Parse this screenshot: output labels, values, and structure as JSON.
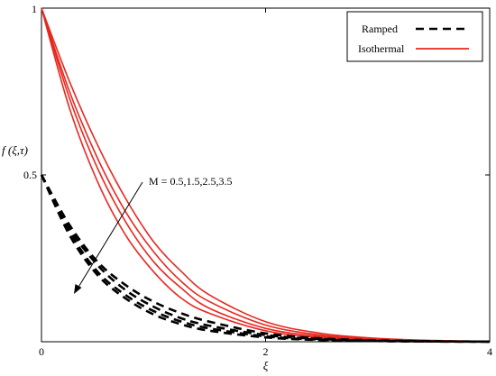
{
  "chart_data": {
    "type": "line",
    "xlabel": "ξ",
    "ylabel": "f (ξ,τ)",
    "xlim": [
      0,
      4
    ],
    "ylim": [
      0,
      1
    ],
    "xticks": [
      "0",
      "2",
      "4"
    ],
    "yticks": [
      "0.5",
      "1"
    ],
    "grid": false,
    "legend_position": "top-right",
    "legend": [
      {
        "label": "Ramped",
        "style": "dashed",
        "color": "#000000"
      },
      {
        "label": "Isothermal",
        "style": "solid",
        "color": "#e8281f"
      }
    ],
    "annotation": {
      "text": "M = 0.5,1.5,2.5,3.5",
      "arrow": "increasing M"
    },
    "series": [
      {
        "group": "Isothermal",
        "M": 0.5,
        "x": [
          0,
          0.25,
          0.5,
          0.75,
          1.0,
          1.25,
          1.5,
          2.0,
          2.5,
          3.0,
          3.5,
          4.0
        ],
        "values": [
          1.0,
          0.78,
          0.59,
          0.43,
          0.3,
          0.21,
          0.14,
          0.06,
          0.025,
          0.01,
          0.004,
          0.001
        ]
      },
      {
        "group": "Isothermal",
        "M": 1.5,
        "x": [
          0,
          0.25,
          0.5,
          0.75,
          1.0,
          1.25,
          1.5,
          2.0,
          2.5,
          3.0,
          3.5,
          4.0
        ],
        "values": [
          1.0,
          0.75,
          0.55,
          0.39,
          0.27,
          0.18,
          0.12,
          0.05,
          0.02,
          0.008,
          0.003,
          0.001
        ]
      },
      {
        "group": "Isothermal",
        "M": 2.5,
        "x": [
          0,
          0.25,
          0.5,
          0.75,
          1.0,
          1.25,
          1.5,
          2.0,
          2.5,
          3.0,
          3.5,
          4.0
        ],
        "values": [
          1.0,
          0.73,
          0.52,
          0.36,
          0.24,
          0.16,
          0.1,
          0.04,
          0.016,
          0.006,
          0.002,
          0.0005
        ]
      },
      {
        "group": "Isothermal",
        "M": 3.5,
        "x": [
          0,
          0.25,
          0.5,
          0.75,
          1.0,
          1.25,
          1.5,
          2.0,
          2.5,
          3.0,
          3.5,
          4.0
        ],
        "values": [
          1.0,
          0.7,
          0.48,
          0.32,
          0.21,
          0.13,
          0.085,
          0.033,
          0.012,
          0.004,
          0.0015,
          0.0004
        ]
      },
      {
        "group": "Ramped",
        "M": 0.5,
        "x": [
          0,
          0.25,
          0.5,
          0.75,
          1.0,
          1.25,
          1.5,
          2.0,
          2.5,
          3.0,
          3.5,
          4.0
        ],
        "values": [
          0.5,
          0.35,
          0.24,
          0.17,
          0.12,
          0.085,
          0.06,
          0.025,
          0.01,
          0.004,
          0.0015,
          0.0005
        ]
      },
      {
        "group": "Ramped",
        "M": 1.5,
        "x": [
          0,
          0.25,
          0.5,
          0.75,
          1.0,
          1.25,
          1.5,
          2.0,
          2.5,
          3.0,
          3.5,
          4.0
        ],
        "values": [
          0.5,
          0.34,
          0.23,
          0.155,
          0.105,
          0.07,
          0.048,
          0.02,
          0.008,
          0.003,
          0.001,
          0.0004
        ]
      },
      {
        "group": "Ramped",
        "M": 2.5,
        "x": [
          0,
          0.25,
          0.5,
          0.75,
          1.0,
          1.25,
          1.5,
          2.0,
          2.5,
          3.0,
          3.5,
          4.0
        ],
        "values": [
          0.5,
          0.33,
          0.21,
          0.14,
          0.092,
          0.06,
          0.04,
          0.016,
          0.006,
          0.002,
          0.0008,
          0.0003
        ]
      },
      {
        "group": "Ramped",
        "M": 3.5,
        "x": [
          0,
          0.25,
          0.5,
          0.75,
          1.0,
          1.25,
          1.5,
          2.0,
          2.5,
          3.0,
          3.5,
          4.0
        ],
        "values": [
          0.5,
          0.32,
          0.2,
          0.13,
          0.082,
          0.052,
          0.033,
          0.013,
          0.005,
          0.002,
          0.0007,
          0.0002
        ]
      }
    ]
  }
}
